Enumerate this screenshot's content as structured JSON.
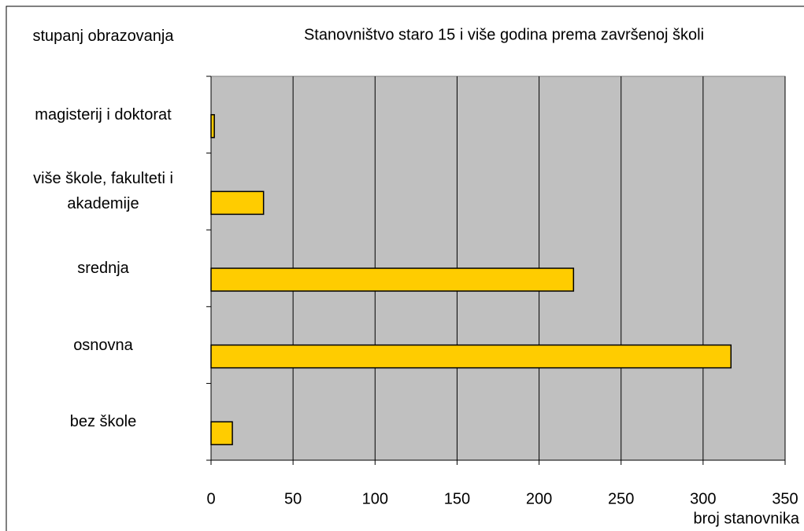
{
  "chart_data": {
    "type": "barh",
    "title": "Stanovništvo staro 15 i više godina prema završenoj školi",
    "y_label": "stupanj obrazovanja",
    "x_label": "broj stanovnika",
    "categories": [
      "magisterij i doktorat",
      "više škole, fakulteti i akademije",
      "srednja",
      "osnovna",
      "bez škole"
    ],
    "values": [
      2,
      32,
      221,
      317,
      13
    ],
    "color": "#ffcc00",
    "xlim": [
      0,
      350
    ],
    "xticks": [
      0,
      50,
      100,
      150,
      200,
      250,
      300,
      350
    ],
    "grid": true
  }
}
